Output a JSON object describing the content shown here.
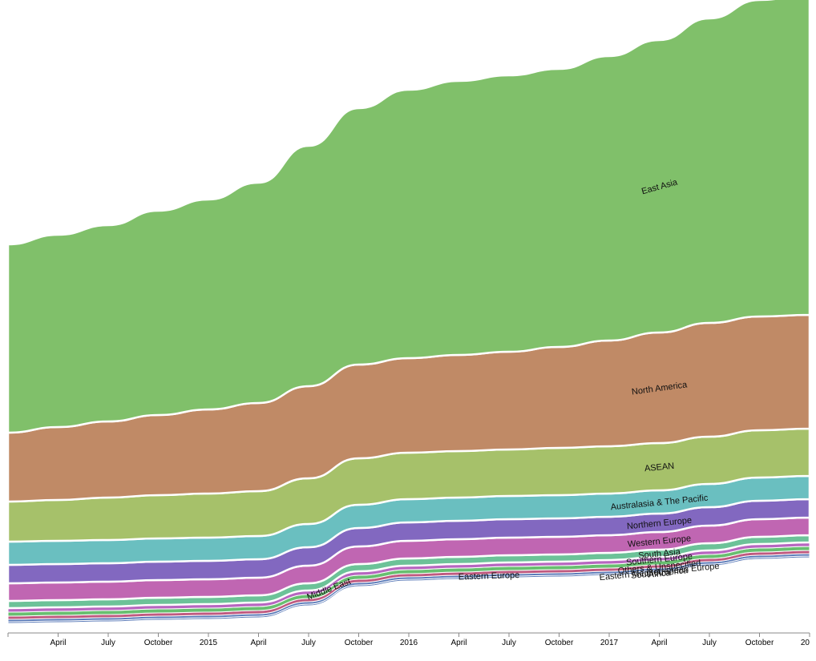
{
  "chart_data": {
    "type": "area",
    "variant": "streamgraph",
    "x": [
      "2014-01-01",
      "2014-04-01",
      "2014-07-01",
      "2014-10-01",
      "2015-01-01",
      "2015-04-01",
      "2015-07-01",
      "2015-10-01",
      "2016-01-01",
      "2016-04-01",
      "2016-07-01",
      "2016-10-01",
      "2017-01-01",
      "2017-04-01",
      "2017-07-01",
      "2017-10-01",
      "2018-01-01"
    ],
    "x_tick_labels": [
      "April",
      "July",
      "October",
      "2015",
      "April",
      "July",
      "October",
      "2016",
      "April",
      "July",
      "October",
      "2017",
      "April",
      "July",
      "October",
      "20"
    ],
    "series": [
      {
        "name": "Africa",
        "color": "#c8a060",
        "values": [
          1,
          1,
          1,
          1,
          1,
          1,
          1,
          1,
          1,
          1,
          1,
          1,
          1,
          1,
          1,
          1,
          1
        ]
      },
      {
        "name": "South America",
        "color": "#a05050",
        "values": [
          1,
          1,
          1,
          1,
          1,
          1,
          1,
          1,
          1,
          1,
          1,
          1,
          1,
          1,
          1,
          1,
          1
        ]
      },
      {
        "name": "Eastern Mediterranean Europe",
        "color": "#5a7ab8",
        "values": [
          2,
          2,
          2,
          2,
          2,
          2,
          2,
          2,
          2,
          2,
          2,
          2,
          2,
          2,
          2,
          2,
          2
        ]
      },
      {
        "name": "Eastern Europe",
        "color": "#5a7ab8",
        "values": [
          3,
          3,
          3,
          3,
          3,
          3,
          3,
          3,
          3,
          3,
          3,
          3,
          3,
          3,
          3,
          3,
          3
        ]
      },
      {
        "name": "Others & Unspecified",
        "color": "#c05a80",
        "values": [
          4,
          4,
          4,
          4,
          4,
          4,
          4,
          4,
          4,
          4,
          4,
          4,
          4,
          4,
          4,
          4,
          4
        ]
      },
      {
        "name": "Middle East",
        "color": "#68bf70",
        "values": [
          5,
          5,
          5,
          5,
          5,
          5,
          5,
          5,
          5,
          5,
          5,
          5,
          5,
          5,
          5,
          5,
          5
        ]
      },
      {
        "name": "Southern Europe",
        "color": "#b766c0",
        "values": [
          5,
          5,
          5,
          5,
          5,
          5,
          5,
          5,
          5,
          5,
          5,
          5,
          5,
          5,
          5,
          5,
          5
        ]
      },
      {
        "name": "South Asia",
        "color": "#6cc298",
        "values": [
          9,
          9,
          9,
          9,
          9,
          9,
          9,
          9,
          9,
          9,
          9,
          9,
          9,
          9,
          9,
          9,
          9
        ]
      },
      {
        "name": "Western Europe",
        "color": "#c066b2",
        "values": [
          22,
          22,
          22,
          22,
          22,
          22,
          22,
          22,
          22,
          22,
          22,
          22,
          22,
          22,
          22,
          22,
          22
        ]
      },
      {
        "name": "Northern Europe",
        "color": "#8268c0",
        "values": [
          23,
          23,
          23,
          23,
          23,
          23,
          23,
          23,
          23,
          23,
          23,
          23,
          23,
          23,
          23,
          23,
          23
        ]
      },
      {
        "name": "Australasia & The Pacific",
        "color": "#6abfc0",
        "values": [
          29,
          29,
          29,
          29,
          29,
          29,
          29,
          29,
          29,
          29,
          29,
          29,
          29,
          29,
          29,
          29,
          29
        ]
      },
      {
        "name": "ASEAN",
        "color": "#a6c16a",
        "values": [
          50,
          51,
          53,
          54,
          55,
          56,
          57,
          58,
          58,
          58,
          58,
          59,
          59,
          59,
          59,
          59,
          59
        ]
      },
      {
        "name": "North America",
        "color": "#c08a66",
        "values": [
          86,
          91,
          95,
          100,
          105,
          110,
          115,
          117,
          118,
          120,
          122,
          126,
          132,
          138,
          142,
          142,
          142
        ]
      },
      {
        "name": "East Asia",
        "color": "#80c06a",
        "values": [
          235,
          240,
          245,
          255,
          262,
          275,
          300,
          320,
          335,
          342,
          345,
          347,
          355,
          365,
          380,
          395,
          400
        ]
      }
    ],
    "labels": [
      "East Asia",
      "North America",
      "ASEAN",
      "Australasia & The Pacific",
      "Northern Europe",
      "Western Europe",
      "South Asia",
      "Southern Europe",
      "Others & Unspecified",
      "Eastern Mediterranean Europe",
      "South America",
      "Africa",
      "Middle East",
      "Eastern Europe"
    ],
    "grid": false,
    "legend": "none"
  }
}
